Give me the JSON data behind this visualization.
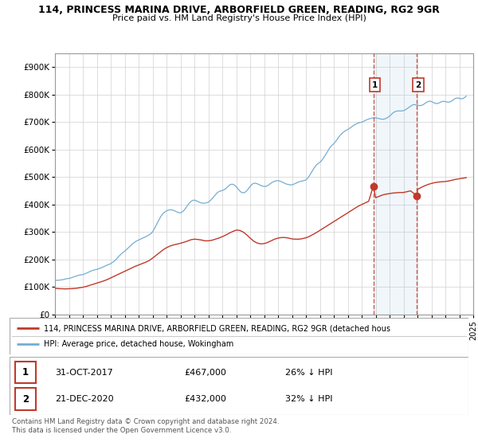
{
  "title1": "114, PRINCESS MARINA DRIVE, ARBORFIELD GREEN, READING, RG2 9GR",
  "title2": "Price paid vs. HM Land Registry's House Price Index (HPI)",
  "ylim": [
    0,
    950000
  ],
  "yticks": [
    0,
    100000,
    200000,
    300000,
    400000,
    500000,
    600000,
    700000,
    800000,
    900000
  ],
  "ytick_labels": [
    "£0",
    "£100K",
    "£200K",
    "£300K",
    "£400K",
    "£500K",
    "£600K",
    "£700K",
    "£800K",
    "£900K"
  ],
  "hpi_color": "#74add1",
  "price_color": "#c0392b",
  "annotation_box_color": "#c0392b",
  "grid_color": "#d0d0d0",
  "legend_label_price": "114, PRINCESS MARINA DRIVE, ARBORFIELD GREEN, READING, RG2 9GR (detached hous",
  "legend_label_hpi": "HPI: Average price, detached house, Wokingham",
  "sale1_date": 2017.833,
  "sale1_price": 467000,
  "sale1_label": "1",
  "sale2_date": 2020.97,
  "sale2_price": 432000,
  "sale2_label": "2",
  "table_rows": [
    [
      "1",
      "31-OCT-2017",
      "£467,000",
      "26% ↓ HPI"
    ],
    [
      "2",
      "21-DEC-2020",
      "£432,000",
      "32% ↓ HPI"
    ]
  ],
  "footnote": "Contains HM Land Registry data © Crown copyright and database right 2024.\nThis data is licensed under the Open Government Licence v3.0.",
  "hpi_dates": [
    1995.0,
    1995.083,
    1995.167,
    1995.25,
    1995.333,
    1995.417,
    1995.5,
    1995.583,
    1995.667,
    1995.75,
    1995.833,
    1995.917,
    1996.0,
    1996.083,
    1996.167,
    1996.25,
    1996.333,
    1996.417,
    1996.5,
    1996.583,
    1996.667,
    1996.75,
    1996.833,
    1996.917,
    1997.0,
    1997.083,
    1997.167,
    1997.25,
    1997.333,
    1997.417,
    1997.5,
    1997.583,
    1997.667,
    1997.75,
    1997.833,
    1997.917,
    1998.0,
    1998.083,
    1998.167,
    1998.25,
    1998.333,
    1998.417,
    1998.5,
    1998.583,
    1998.667,
    1998.75,
    1998.833,
    1998.917,
    1999.0,
    1999.083,
    1999.167,
    1999.25,
    1999.333,
    1999.417,
    1999.5,
    1999.583,
    1999.667,
    1999.75,
    1999.833,
    1999.917,
    2000.0,
    2000.083,
    2000.167,
    2000.25,
    2000.333,
    2000.417,
    2000.5,
    2000.583,
    2000.667,
    2000.75,
    2000.833,
    2000.917,
    2001.0,
    2001.083,
    2001.167,
    2001.25,
    2001.333,
    2001.417,
    2001.5,
    2001.583,
    2001.667,
    2001.75,
    2001.833,
    2001.917,
    2002.0,
    2002.083,
    2002.167,
    2002.25,
    2002.333,
    2002.417,
    2002.5,
    2002.583,
    2002.667,
    2002.75,
    2002.833,
    2002.917,
    2003.0,
    2003.083,
    2003.167,
    2003.25,
    2003.333,
    2003.417,
    2003.5,
    2003.583,
    2003.667,
    2003.75,
    2003.833,
    2003.917,
    2004.0,
    2004.083,
    2004.167,
    2004.25,
    2004.333,
    2004.417,
    2004.5,
    2004.583,
    2004.667,
    2004.75,
    2004.833,
    2004.917,
    2005.0,
    2005.083,
    2005.167,
    2005.25,
    2005.333,
    2005.417,
    2005.5,
    2005.583,
    2005.667,
    2005.75,
    2005.833,
    2005.917,
    2006.0,
    2006.083,
    2006.167,
    2006.25,
    2006.333,
    2006.417,
    2006.5,
    2006.583,
    2006.667,
    2006.75,
    2006.833,
    2006.917,
    2007.0,
    2007.083,
    2007.167,
    2007.25,
    2007.333,
    2007.417,
    2007.5,
    2007.583,
    2007.667,
    2007.75,
    2007.833,
    2007.917,
    2008.0,
    2008.083,
    2008.167,
    2008.25,
    2008.333,
    2008.417,
    2008.5,
    2008.583,
    2008.667,
    2008.75,
    2008.833,
    2008.917,
    2009.0,
    2009.083,
    2009.167,
    2009.25,
    2009.333,
    2009.417,
    2009.5,
    2009.583,
    2009.667,
    2009.75,
    2009.833,
    2009.917,
    2010.0,
    2010.083,
    2010.167,
    2010.25,
    2010.333,
    2010.417,
    2010.5,
    2010.583,
    2010.667,
    2010.75,
    2010.833,
    2010.917,
    2011.0,
    2011.083,
    2011.167,
    2011.25,
    2011.333,
    2011.417,
    2011.5,
    2011.583,
    2011.667,
    2011.75,
    2011.833,
    2011.917,
    2012.0,
    2012.083,
    2012.167,
    2012.25,
    2012.333,
    2012.417,
    2012.5,
    2012.583,
    2012.667,
    2012.75,
    2012.833,
    2012.917,
    2013.0,
    2013.083,
    2013.167,
    2013.25,
    2013.333,
    2013.417,
    2013.5,
    2013.583,
    2013.667,
    2013.75,
    2013.833,
    2013.917,
    2014.0,
    2014.083,
    2014.167,
    2014.25,
    2014.333,
    2014.417,
    2014.5,
    2014.583,
    2014.667,
    2014.75,
    2014.833,
    2014.917,
    2015.0,
    2015.083,
    2015.167,
    2015.25,
    2015.333,
    2015.417,
    2015.5,
    2015.583,
    2015.667,
    2015.75,
    2015.833,
    2015.917,
    2016.0,
    2016.083,
    2016.167,
    2016.25,
    2016.333,
    2016.417,
    2016.5,
    2016.583,
    2016.667,
    2016.75,
    2016.833,
    2016.917,
    2017.0,
    2017.083,
    2017.167,
    2017.25,
    2017.333,
    2017.417,
    2017.5,
    2017.583,
    2017.667,
    2017.75,
    2017.833,
    2017.917,
    2018.0,
    2018.083,
    2018.167,
    2018.25,
    2018.333,
    2018.417,
    2018.5,
    2018.583,
    2018.667,
    2018.75,
    2018.833,
    2018.917,
    2019.0,
    2019.083,
    2019.167,
    2019.25,
    2019.333,
    2019.417,
    2019.5,
    2019.583,
    2019.667,
    2019.75,
    2019.833,
    2019.917,
    2020.0,
    2020.083,
    2020.167,
    2020.25,
    2020.333,
    2020.417,
    2020.5,
    2020.583,
    2020.667,
    2020.75,
    2020.833,
    2020.917,
    2021.0,
    2021.083,
    2021.167,
    2021.25,
    2021.333,
    2021.417,
    2021.5,
    2021.583,
    2021.667,
    2021.75,
    2021.833,
    2021.917,
    2022.0,
    2022.083,
    2022.167,
    2022.25,
    2022.333,
    2022.417,
    2022.5,
    2022.583,
    2022.667,
    2022.75,
    2022.833,
    2022.917,
    2023.0,
    2023.083,
    2023.167,
    2023.25,
    2023.333,
    2023.417,
    2023.5,
    2023.583,
    2023.667,
    2023.75,
    2023.833,
    2023.917,
    2024.0,
    2024.083,
    2024.167,
    2024.25,
    2024.333,
    2024.417,
    2024.5
  ],
  "hpi_values": [
    125000,
    124500,
    124000,
    124500,
    125000,
    125500,
    126000,
    127000,
    128000,
    129000,
    130000,
    130500,
    131000,
    132000,
    133500,
    135000,
    136500,
    138000,
    139500,
    141000,
    142000,
    143000,
    144000,
    144500,
    145000,
    146500,
    148000,
    150000,
    152000,
    154000,
    156000,
    158000,
    159500,
    161000,
    162000,
    163000,
    164000,
    165500,
    167000,
    168500,
    170000,
    172000,
    174000,
    176000,
    178000,
    180000,
    181500,
    183000,
    185000,
    188000,
    191000,
    194000,
    198000,
    202000,
    207000,
    212000,
    216000,
    220000,
    224000,
    227000,
    230000,
    234000,
    238000,
    242000,
    246000,
    250000,
    254000,
    258000,
    261000,
    264000,
    267000,
    269000,
    271000,
    273000,
    275000,
    277000,
    279000,
    281000,
    283000,
    285000,
    287000,
    290000,
    293000,
    296000,
    300000,
    308000,
    316000,
    324000,
    332000,
    340000,
    348000,
    356000,
    362000,
    367000,
    371000,
    374000,
    377000,
    379000,
    380000,
    381000,
    381000,
    380000,
    379000,
    377000,
    375000,
    373000,
    372000,
    370000,
    370000,
    372000,
    375000,
    379000,
    384000,
    390000,
    396000,
    402000,
    407000,
    411000,
    414000,
    416000,
    416000,
    415000,
    413000,
    411000,
    409000,
    407000,
    406000,
    405000,
    405000,
    405000,
    406000,
    407000,
    409000,
    412000,
    416000,
    420000,
    425000,
    430000,
    435000,
    440000,
    444000,
    447000,
    449000,
    450000,
    451000,
    453000,
    455000,
    458000,
    462000,
    466000,
    470000,
    473000,
    474000,
    474000,
    472000,
    469000,
    465000,
    460000,
    455000,
    450000,
    446000,
    444000,
    443000,
    444000,
    446000,
    450000,
    455000,
    461000,
    466000,
    471000,
    475000,
    477000,
    478000,
    477000,
    476000,
    474000,
    472000,
    470000,
    468000,
    467000,
    466000,
    466000,
    467000,
    469000,
    472000,
    475000,
    478000,
    481000,
    483000,
    485000,
    486000,
    487000,
    487000,
    486000,
    485000,
    483000,
    481000,
    479000,
    477000,
    475000,
    474000,
    473000,
    472000,
    472000,
    472000,
    473000,
    475000,
    477000,
    479000,
    481000,
    483000,
    484000,
    485000,
    486000,
    487000,
    488000,
    490000,
    494000,
    499000,
    505000,
    512000,
    519000,
    526000,
    533000,
    539000,
    544000,
    548000,
    551000,
    554000,
    558000,
    563000,
    569000,
    575000,
    582000,
    589000,
    596000,
    603000,
    609000,
    614000,
    618000,
    622000,
    627000,
    632000,
    638000,
    644000,
    650000,
    655000,
    659000,
    663000,
    666000,
    669000,
    671000,
    673000,
    676000,
    679000,
    682000,
    685000,
    688000,
    691000,
    693000,
    695000,
    697000,
    698000,
    699000,
    700000,
    702000,
    704000,
    706000,
    708000,
    710000,
    711000,
    713000,
    714000,
    715000,
    716000,
    716000,
    716000,
    715000,
    714000,
    713000,
    712000,
    711000,
    711000,
    711000,
    712000,
    714000,
    716000,
    719000,
    722000,
    726000,
    730000,
    734000,
    737000,
    739000,
    740000,
    741000,
    741000,
    741000,
    741000,
    741000,
    742000,
    744000,
    746000,
    749000,
    752000,
    755000,
    758000,
    761000,
    763000,
    764000,
    764000,
    763000,
    762000,
    761000,
    760000,
    761000,
    762000,
    764000,
    767000,
    770000,
    773000,
    775000,
    776000,
    776000,
    775000,
    773000,
    771000,
    769000,
    768000,
    768000,
    769000,
    771000,
    773000,
    775000,
    776000,
    776000,
    775000,
    774000,
    773000,
    773000,
    774000,
    776000,
    779000,
    782000,
    785000,
    787000,
    788000,
    788000,
    787000,
    786000,
    785000,
    786000,
    788000,
    791000,
    795000
  ],
  "price_dates": [
    1995.0,
    1995.25,
    1995.5,
    1995.75,
    1996.0,
    1996.25,
    1996.5,
    1996.75,
    1997.0,
    1997.25,
    1997.5,
    1997.75,
    1998.0,
    1998.25,
    1998.5,
    1998.75,
    1999.0,
    1999.25,
    1999.5,
    1999.75,
    2000.0,
    2000.25,
    2000.5,
    2000.75,
    2001.0,
    2001.25,
    2001.5,
    2001.75,
    2002.0,
    2002.25,
    2002.5,
    2002.75,
    2003.0,
    2003.25,
    2003.5,
    2003.75,
    2004.0,
    2004.25,
    2004.5,
    2004.75,
    2005.0,
    2005.25,
    2005.5,
    2005.75,
    2006.0,
    2006.25,
    2006.5,
    2006.75,
    2007.0,
    2007.25,
    2007.5,
    2007.75,
    2008.0,
    2008.25,
    2008.5,
    2008.75,
    2009.0,
    2009.25,
    2009.5,
    2009.75,
    2010.0,
    2010.25,
    2010.5,
    2010.75,
    2011.0,
    2011.25,
    2011.5,
    2011.75,
    2012.0,
    2012.25,
    2012.5,
    2012.75,
    2013.0,
    2013.25,
    2013.5,
    2013.75,
    2014.0,
    2014.25,
    2014.5,
    2014.75,
    2015.0,
    2015.25,
    2015.5,
    2015.75,
    2016.0,
    2016.25,
    2016.5,
    2016.75,
    2017.0,
    2017.25,
    2017.5,
    2017.833,
    2018.0,
    2018.25,
    2018.5,
    2018.75,
    2019.0,
    2019.25,
    2019.5,
    2019.75,
    2020.0,
    2020.25,
    2020.5,
    2020.97,
    2021.0,
    2021.25,
    2021.5,
    2021.75,
    2022.0,
    2022.25,
    2022.5,
    2022.75,
    2023.0,
    2023.25,
    2023.5,
    2023.75,
    2024.0,
    2024.25,
    2024.5
  ],
  "price_values": [
    95000,
    94000,
    93500,
    93000,
    93500,
    94000,
    95000,
    97000,
    99000,
    102000,
    106000,
    110000,
    114000,
    118000,
    122000,
    127000,
    133000,
    139000,
    145000,
    151000,
    157000,
    163000,
    169000,
    175000,
    180000,
    185000,
    190000,
    196000,
    205000,
    215000,
    225000,
    235000,
    243000,
    249000,
    253000,
    256000,
    259000,
    263000,
    267000,
    272000,
    274000,
    273000,
    271000,
    268000,
    268000,
    270000,
    274000,
    278000,
    283000,
    289000,
    296000,
    302000,
    307000,
    306000,
    300000,
    290000,
    278000,
    267000,
    260000,
    257000,
    258000,
    262000,
    268000,
    274000,
    278000,
    280000,
    280000,
    278000,
    275000,
    274000,
    274000,
    276000,
    279000,
    284000,
    291000,
    298000,
    306000,
    314000,
    322000,
    330000,
    338000,
    346000,
    354000,
    362000,
    370000,
    378000,
    386000,
    394000,
    400000,
    406000,
    412000,
    467000,
    425000,
    430000,
    435000,
    438000,
    440000,
    442000,
    443000,
    444000,
    444000,
    447000,
    450000,
    432000,
    455000,
    462000,
    468000,
    473000,
    477000,
    480000,
    482000,
    483000,
    484000,
    486000,
    489000,
    492000,
    494000,
    496000,
    498000
  ]
}
